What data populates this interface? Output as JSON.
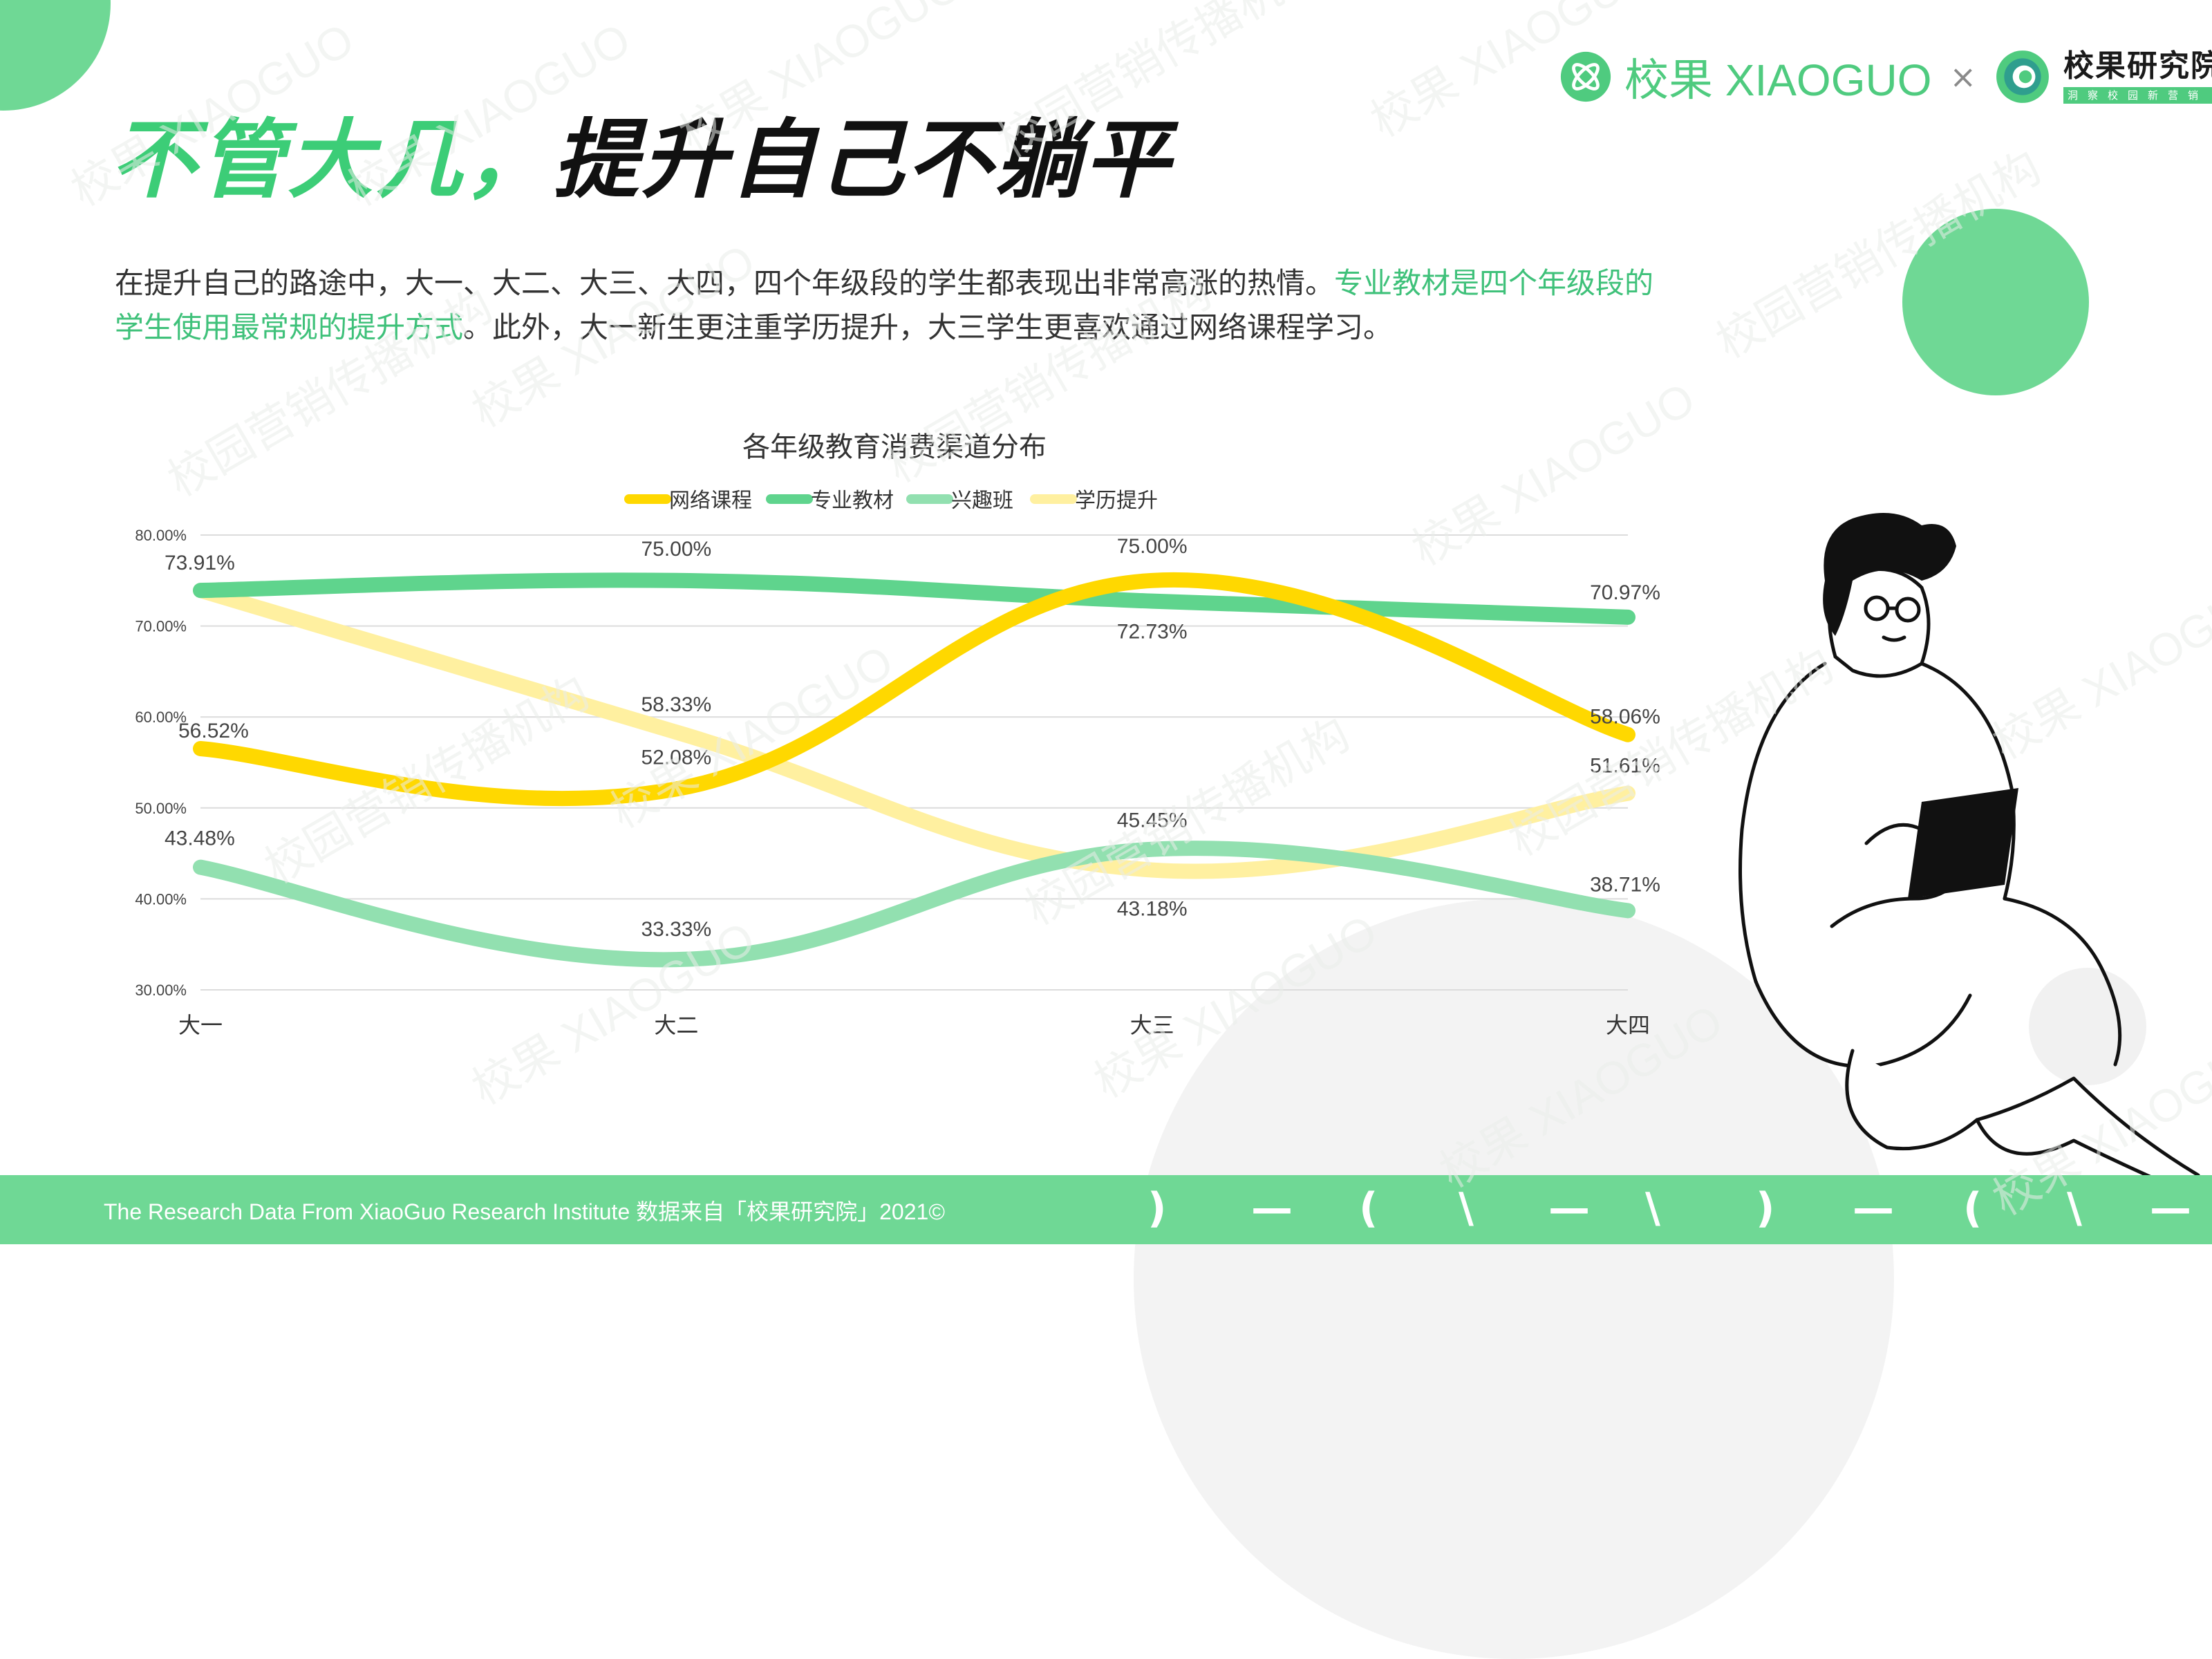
{
  "header": {
    "title_part1": "不管大几，",
    "title_part2": "提升自己不躺平"
  },
  "brand": {
    "xiaoguo_text": "校果 XIAOGUO",
    "times_symbol": "×",
    "institute_text": "校果研究院",
    "institute_sub": "洞察校园新营销"
  },
  "intro": {
    "part1": "在提升自己的路途中，大一、大二、大三、大四，四个年级段的学生都表现出非常高涨的热情。",
    "highlight": "专业教材是四个年级段的学生使用最常规的提升方式",
    "part2": "。此外，大一新生更注重学历提升，大三学生更喜欢通过网络课程学习。"
  },
  "watermark": {
    "brand_text": "校果 XIAOGUO",
    "org_text": "校园营销传播机构"
  },
  "chart_data": {
    "type": "line",
    "title": "各年级教育消费渠道分布",
    "categories": [
      "大一",
      "大二",
      "大三",
      "大四"
    ],
    "ylim": [
      30,
      80
    ],
    "yticks": [
      "30.00%",
      "40.00%",
      "50.00%",
      "60.00%",
      "70.00%",
      "80.00%"
    ],
    "grid": true,
    "legend_position": "top",
    "series": [
      {
        "name": "网络课程",
        "color": "#ffd800",
        "values": [
          56.52,
          52.08,
          75.0,
          58.06
        ],
        "labels": [
          "56.52%",
          "52.08%",
          "75.00%",
          "58.06%"
        ]
      },
      {
        "name": "专业教材",
        "color": "#5fd48d",
        "values": [
          73.91,
          75.0,
          72.73,
          70.97
        ],
        "labels": [
          "73.91%",
          "75.00%",
          "72.73%",
          "70.97%"
        ]
      },
      {
        "name": "兴趣班",
        "color": "#92e0b0",
        "values": [
          43.48,
          33.33,
          45.45,
          38.71
        ],
        "labels": [
          "43.48%",
          "33.33%",
          "45.45%",
          "38.71%"
        ]
      },
      {
        "name": "学历提升",
        "color": "#fff0a0",
        "values": [
          73.91,
          58.33,
          43.18,
          51.61
        ],
        "labels": [
          "",
          "58.33%",
          "43.18%",
          "51.61%"
        ]
      }
    ]
  },
  "footer": {
    "text": "The Research Data  From XiaoGuo Research Institute 数据来自「校果研究院」2021©",
    "glyphs": [
      ")",
      "—",
      "(",
      "\\",
      "—",
      "\\",
      ")",
      "—",
      "(",
      "\\",
      "—"
    ]
  },
  "colors": {
    "brand_green": "#4fcb7f",
    "footer_green": "#6fd895",
    "title_green": "#3ccd77"
  }
}
